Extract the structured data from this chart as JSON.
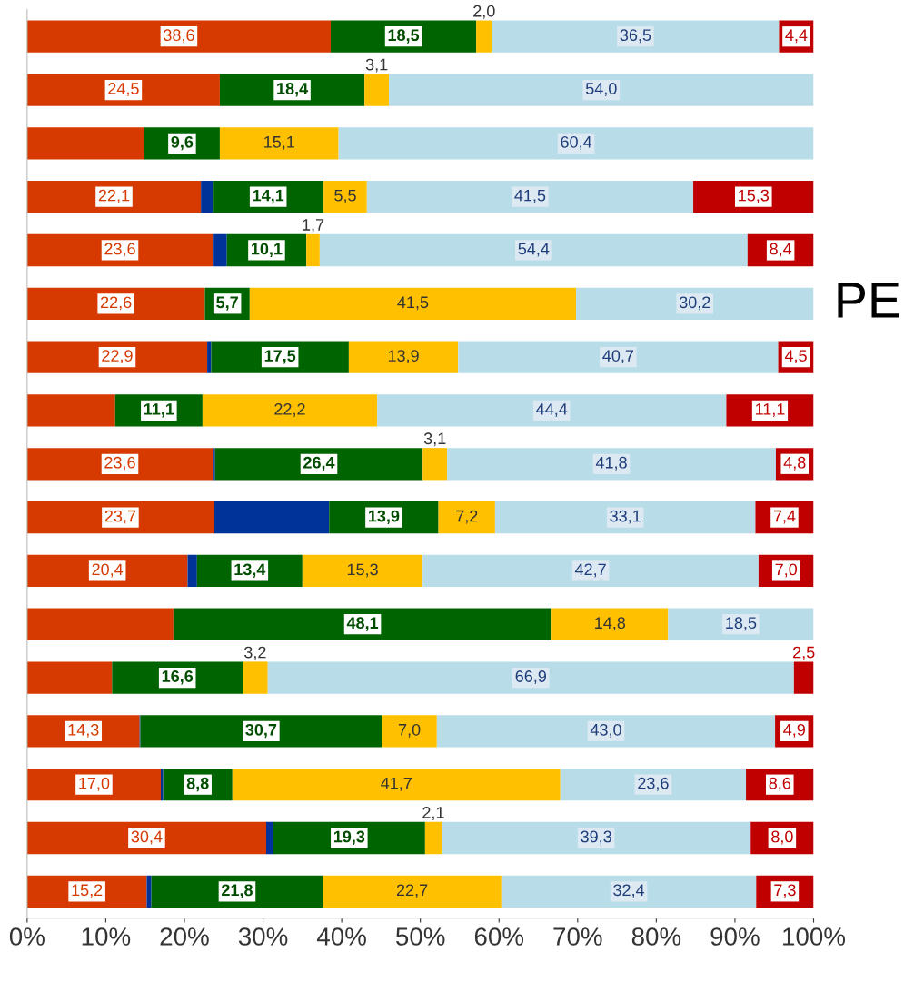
{
  "chart_data": {
    "type": "bar",
    "orientation": "horizontal",
    "stacked": true,
    "categories": [
      null,
      null,
      null,
      null,
      null,
      null,
      null,
      null,
      null,
      null,
      null,
      null,
      null,
      null,
      null,
      null,
      null
    ],
    "series": [
      {
        "color": "#d63a00",
        "values": [
          38.6,
          24.5,
          14.9,
          22.1,
          23.6,
          22.6,
          22.9,
          11.2,
          23.6,
          23.7,
          20.4,
          18.6,
          10.8,
          14.3,
          17.0,
          30.4,
          15.2
        ],
        "value_labels": [
          "38,6",
          "24,5",
          null,
          "22,1",
          "23,6",
          "22,6",
          "22,9",
          null,
          "23,6",
          "23,7",
          "20,4",
          null,
          null,
          "14,3",
          "17,0",
          "30,4",
          "15,2"
        ]
      },
      {
        "color": "#003399",
        "values": [
          0,
          0,
          0,
          1.5,
          1.8,
          0,
          0.5,
          0,
          0.3,
          14.7,
          1.2,
          0,
          0,
          0.1,
          0.3,
          0.9,
          0.6
        ],
        "value_labels": [
          null,
          null,
          null,
          null,
          null,
          null,
          null,
          null,
          null,
          null,
          null,
          null,
          null,
          null,
          null,
          null,
          null
        ]
      },
      {
        "color": "#006400",
        "values": [
          18.5,
          18.4,
          9.6,
          14.1,
          10.1,
          5.7,
          17.5,
          11.1,
          26.4,
          13.9,
          13.4,
          48.1,
          16.6,
          30.7,
          8.8,
          19.3,
          21.8
        ],
        "value_labels": [
          "18,5",
          "18,4",
          "9,6",
          "14,1",
          "10,1",
          "5,7",
          "17,5",
          "11,1",
          "26,4",
          "13,9",
          "13,4",
          "48,1",
          "16,6",
          "30,7",
          "8,8",
          "19,3",
          "21,8"
        ]
      },
      {
        "color": "#ffc000",
        "values": [
          2.0,
          3.1,
          15.1,
          5.5,
          1.7,
          41.5,
          13.9,
          22.2,
          3.1,
          7.2,
          15.3,
          14.8,
          3.2,
          7.0,
          41.7,
          2.1,
          22.7
        ],
        "value_labels": [
          "2,0",
          "3,1",
          "15,1",
          "5,5",
          "1,7",
          "41,5",
          "13,9",
          "22,2",
          "3,1",
          "7,2",
          "15,3",
          "14,8",
          "3,2",
          "7,0",
          "41,7",
          "2,1",
          "22,7"
        ]
      },
      {
        "color": "#b8dde8",
        "values": [
          36.5,
          54.0,
          60.4,
          41.5,
          54.4,
          30.2,
          40.7,
          44.4,
          41.8,
          33.1,
          42.7,
          18.5,
          66.9,
          43.0,
          23.6,
          39.3,
          32.4
        ],
        "value_labels": [
          "36,5",
          "54,0",
          "60,4",
          "41,5",
          "54,4",
          "30,2",
          "40,7",
          "44,4",
          "41,8",
          "33,1",
          "42,7",
          "18,5",
          "66,9",
          "43,0",
          "23,6",
          "39,3",
          "32,4"
        ]
      },
      {
        "color": "#c00000",
        "values": [
          4.4,
          0,
          0,
          15.3,
          8.4,
          0,
          4.5,
          11.1,
          4.8,
          7.4,
          7.0,
          0,
          2.5,
          4.9,
          8.6,
          8.0,
          7.3
        ],
        "value_labels": [
          "4,4",
          null,
          null,
          "15,3",
          "8,4",
          null,
          "4,5",
          "11,1",
          "4,8",
          "7,4",
          "7,0",
          null,
          "2,5",
          "4,9",
          "8,6",
          "8,0",
          "7,3"
        ]
      }
    ],
    "xlim": [
      0,
      100
    ],
    "xticks": [
      {
        "value": 0,
        "label": "0%"
      },
      {
        "value": 10,
        "label": "10%"
      },
      {
        "value": 20,
        "label": "20%"
      },
      {
        "value": 30,
        "label": "30%"
      },
      {
        "value": 40,
        "label": "40%"
      },
      {
        "value": 50,
        "label": "50%"
      },
      {
        "value": 60,
        "label": "60%"
      },
      {
        "value": 70,
        "label": "70%"
      },
      {
        "value": 80,
        "label": "80%"
      },
      {
        "value": 90,
        "label": "90%"
      },
      {
        "value": 100,
        "label": "100%"
      }
    ],
    "tick_labels": "x",
    "grid": false,
    "annotations": [
      "PE"
    ]
  }
}
